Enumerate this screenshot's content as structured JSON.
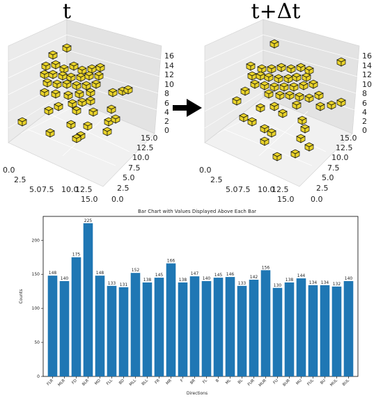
{
  "panel_left": {
    "time_label": "t",
    "z_ticks": [
      "16",
      "14",
      "12",
      "10",
      "8",
      "6",
      "4",
      "2",
      "0"
    ],
    "x_ticks": [
      "0.0",
      "2.5",
      "5.0",
      "7.5",
      "10.0",
      "12.5",
      "15.0"
    ],
    "y_ticks": [
      "0.0",
      "2.5",
      "5.0",
      "7.5",
      "10.0",
      "12.5",
      "15.0"
    ]
  },
  "panel_right": {
    "time_label": "t+Δt",
    "z_ticks": [
      "16",
      "14",
      "12",
      "10",
      "8",
      "6",
      "4",
      "2",
      "0"
    ],
    "x_ticks": [
      "0.0",
      "2.5",
      "5.0",
      "7.5",
      "10.0",
      "12.5",
      "15.0"
    ],
    "y_ticks": [
      "0.0",
      "2.5",
      "5.0",
      "7.5",
      "10.0",
      "12.5",
      "15.0"
    ]
  },
  "colors": {
    "cube": "#e8d22a",
    "bar": "#1f77b4",
    "arrow": "#000000"
  },
  "chart_data": {
    "type": "bar",
    "title": "Bar Chart with Values Displayed Above Each Bar",
    "xlabel": "Directions",
    "ylabel": "Counts",
    "ylim": [
      0,
      235
    ],
    "yticks": [
      0,
      50,
      100,
      150,
      200
    ],
    "grid": false,
    "categories": [
      "FLR",
      "MLR",
      "FD",
      "BLR",
      "MD",
      "FLL",
      "BD",
      "MLL",
      "BLL",
      "FR",
      "MR",
      "F",
      "BR",
      "FL",
      "B",
      "ML",
      "BL",
      "FUR",
      "MUR",
      "FU",
      "BUR",
      "MU",
      "FUL",
      "BU",
      "MUL",
      "BUL"
    ],
    "values": [
      148,
      140,
      175,
      225,
      148,
      133,
      131,
      152,
      138,
      145,
      166,
      138,
      147,
      140,
      145,
      146,
      133,
      142,
      156,
      130,
      138,
      144,
      134,
      134,
      132,
      140
    ]
  }
}
